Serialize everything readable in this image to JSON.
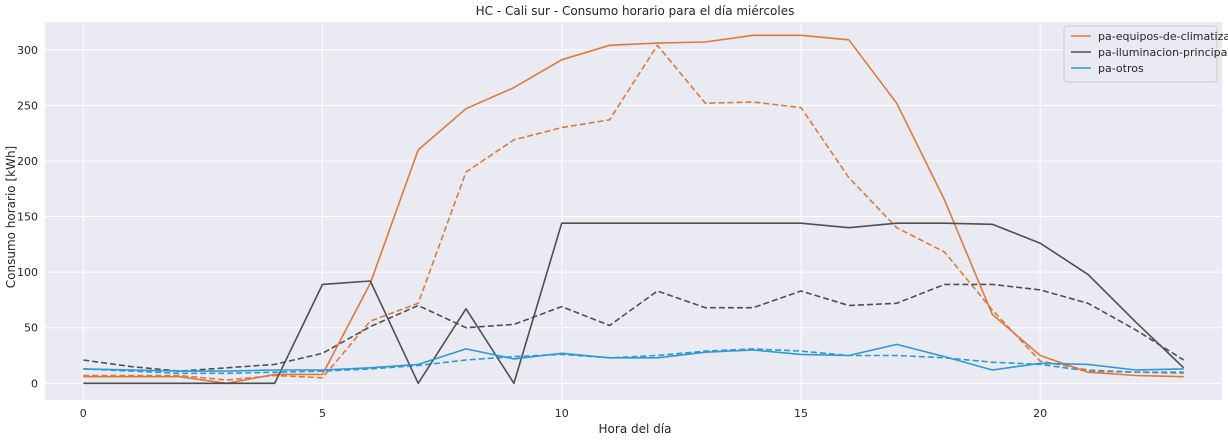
{
  "chart_data": {
    "type": "line",
    "title": "HC - Cali sur - Consumo horario para el día miércoles",
    "xlabel": "Hora del día",
    "ylabel": "Consumo horario [kWh]",
    "xlim": [
      -0.8,
      23.8
    ],
    "ylim": [
      -15,
      325
    ],
    "xticks": [
      0,
      5,
      10,
      15,
      20
    ],
    "yticks": [
      0,
      50,
      100,
      150,
      200,
      250,
      300
    ],
    "grid": true,
    "legend_position": "top-right",
    "x": [
      0,
      1,
      2,
      3,
      4,
      5,
      6,
      7,
      8,
      9,
      10,
      11,
      12,
      13,
      14,
      15,
      16,
      17,
      18,
      19,
      20,
      21,
      22,
      23
    ],
    "series": [
      {
        "name": "pa-equipos-de-climatizacion",
        "color": "#dd7a3b",
        "style": "solid",
        "in_legend": true,
        "values": [
          6,
          6,
          6,
          0,
          8,
          8,
          90,
          210,
          247,
          266,
          291,
          304,
          306,
          307,
          313,
          313,
          309,
          252,
          165,
          62,
          25,
          10,
          7,
          6
        ]
      },
      {
        "name": "pa-iluminacion-principal",
        "color": "#4f4f4f",
        "style": "solid",
        "in_legend": true,
        "values": [
          0,
          0,
          0,
          0,
          0,
          89,
          92,
          0,
          67,
          0,
          144,
          144,
          144,
          144,
          144,
          144,
          140,
          144,
          144,
          143,
          126,
          98,
          55,
          14
        ]
      },
      {
        "name": "pa-otros",
        "color": "#2d9ad6",
        "style": "solid",
        "in_legend": true,
        "values": [
          13,
          12,
          11,
          11,
          12,
          12,
          14,
          17,
          31,
          22,
          27,
          23,
          23,
          28,
          30,
          26,
          25,
          35,
          24,
          12,
          18,
          17,
          12,
          13
        ]
      },
      {
        "name": "",
        "color": "#dd7a3b",
        "style": "dashed",
        "in_legend": false,
        "values": [
          7,
          7,
          7,
          3,
          7,
          5,
          56,
          72,
          190,
          219,
          230,
          237,
          304,
          252,
          253,
          248,
          185,
          140,
          118,
          66,
          20,
          12,
          10,
          9
        ]
      },
      {
        "name": "",
        "color": "#4f4f4f",
        "style": "dashed",
        "in_legend": false,
        "values": [
          21,
          15,
          11,
          14,
          17,
          27,
          51,
          70,
          50,
          53,
          69,
          52,
          83,
          68,
          68,
          83,
          70,
          72,
          89,
          89,
          84,
          72,
          48,
          21
        ]
      },
      {
        "name": "",
        "color": "#2d9ad6",
        "style": "dashed",
        "in_legend": false,
        "values": [
          13,
          11,
          9,
          9,
          10,
          11,
          13,
          16,
          21,
          24,
          26,
          23,
          25,
          29,
          31,
          29,
          25,
          25,
          23,
          19,
          17,
          11,
          10,
          10
        ]
      }
    ]
  }
}
